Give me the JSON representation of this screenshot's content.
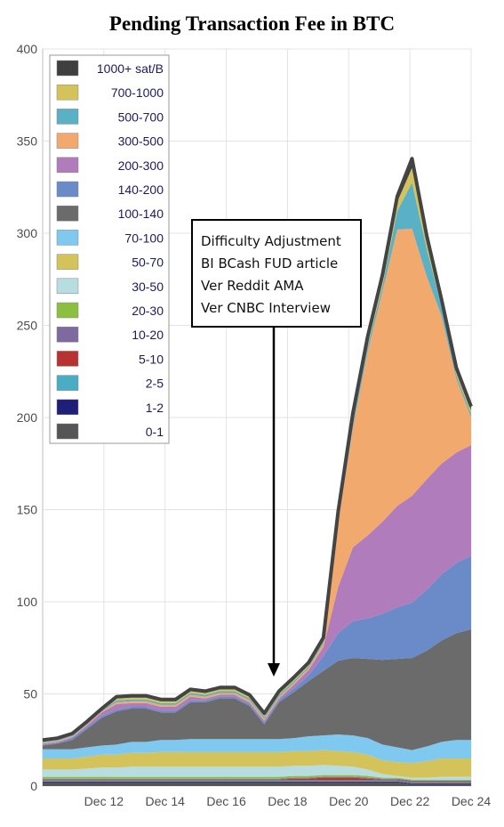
{
  "chart_data": {
    "type": "area",
    "title": "Pending Transaction Fee in BTC",
    "xlabel": "",
    "ylabel": "",
    "ylim": [
      0,
      400
    ],
    "yticks": [
      0,
      50,
      100,
      150,
      200,
      250,
      300,
      350,
      400
    ],
    "xlim": [
      "Dec 10",
      "Dec 24"
    ],
    "xtick_labels": [
      "Dec 12",
      "Dec 14",
      "Dec 16",
      "Dec 18",
      "Dec 20",
      "Dec 22",
      "Dec 24"
    ],
    "grid": true,
    "legend_placement": "top-left",
    "stacked": true,
    "x": [
      "Dec 10 00:00",
      "Dec 10 12:00",
      "Dec 11 00:00",
      "Dec 11 12:00",
      "Dec 12 00:00",
      "Dec 12 12:00",
      "Dec 13 00:00",
      "Dec 13 12:00",
      "Dec 14 00:00",
      "Dec 14 12:00",
      "Dec 15 00:00",
      "Dec 15 12:00",
      "Dec 16 00:00",
      "Dec 16 12:00",
      "Dec 17 00:00",
      "Dec 17 12:00",
      "Dec 18 00:00",
      "Dec 18 12:00",
      "Dec 19 00:00",
      "Dec 19 12:00",
      "Dec 20 00:00",
      "Dec 20 12:00",
      "Dec 21 00:00",
      "Dec 21 12:00",
      "Dec 22 00:00",
      "Dec 22 12:00",
      "Dec 23 00:00",
      "Dec 23 12:00",
      "Dec 24 00:00",
      "Dec 24 12:00"
    ],
    "series": [
      {
        "name": "0-1",
        "color": "#555555",
        "values": [
          2,
          2,
          2,
          2,
          2,
          2,
          2,
          2,
          2,
          2,
          2,
          2,
          2,
          2,
          2,
          2,
          2,
          2,
          2,
          2,
          2,
          2,
          2,
          2,
          2,
          1,
          1,
          1,
          1,
          1
        ]
      },
      {
        "name": "1-2",
        "color": "#1f1f7a",
        "values": [
          0.5,
          0.5,
          0.5,
          0.5,
          0.5,
          0.5,
          0.5,
          0.5,
          0.5,
          0.5,
          0.5,
          0.5,
          0.5,
          0.5,
          0.5,
          0.5,
          0.5,
          0.5,
          0.5,
          0.5,
          0.5,
          0.5,
          0.5,
          0.5,
          0.5,
          0.5,
          0.5,
          0.5,
          0.5,
          0.5
        ]
      },
      {
        "name": "2-5",
        "color": "#4bacc6",
        "values": [
          0.5,
          0.5,
          0.5,
          0.5,
          0.5,
          0.5,
          0.5,
          0.5,
          0.5,
          0.5,
          0.5,
          0.5,
          0.5,
          0.5,
          0.5,
          0.5,
          0.5,
          0.5,
          0.5,
          0.5,
          0.5,
          0.5,
          0.5,
          0.5,
          0.5,
          0.5,
          0.5,
          0.5,
          0.5,
          0.5
        ]
      },
      {
        "name": "5-10",
        "color": "#b83232",
        "values": [
          0.5,
          0.5,
          0.5,
          0.5,
          0.5,
          0.5,
          0.5,
          0.5,
          0.5,
          0.5,
          0.5,
          0.5,
          0.5,
          0.5,
          0.5,
          0.5,
          0.5,
          1,
          1,
          1.5,
          1.5,
          1.5,
          1,
          0.5,
          0.5,
          0.5,
          0.5,
          0.5,
          0.5,
          0.5
        ]
      },
      {
        "name": "10-20",
        "color": "#7f6aa0",
        "values": [
          0.5,
          0.5,
          0.5,
          0.5,
          0.5,
          0.5,
          0.5,
          0.5,
          0.5,
          0.5,
          0.5,
          0.5,
          0.5,
          0.5,
          0.5,
          0.5,
          0.5,
          0.5,
          0.5,
          0.5,
          0.5,
          0.5,
          0.5,
          0.5,
          0.5,
          0.5,
          0.5,
          0.5,
          0.5,
          0.5
        ]
      },
      {
        "name": "20-30",
        "color": "#8cbf3f",
        "values": [
          1,
          1,
          1,
          1,
          1,
          1,
          1,
          1,
          1,
          1,
          1,
          1,
          1,
          1,
          1,
          1,
          1,
          1,
          1,
          1,
          1,
          1,
          1,
          0.5,
          0.5,
          0.5,
          0.5,
          0.5,
          0.5,
          0.5
        ]
      },
      {
        "name": "30-50",
        "color": "#b7dde0",
        "values": [
          4,
          4,
          4,
          4.5,
          5,
          5,
          5.5,
          5.5,
          5.5,
          5.5,
          5.5,
          5.5,
          5.5,
          5.5,
          5.5,
          5.5,
          5.5,
          5.5,
          5.5,
          5.5,
          5,
          4.5,
          3.5,
          2,
          1,
          1,
          1,
          1.5,
          1.5,
          1.5
        ]
      },
      {
        "name": "50-70",
        "color": "#d4c25a",
        "values": [
          6,
          6,
          6,
          6.5,
          7,
          7,
          7.5,
          7.5,
          8,
          8,
          8,
          8,
          8,
          8,
          8,
          8,
          8,
          8,
          8,
          8,
          8,
          8,
          8,
          7.5,
          7.5,
          8,
          9,
          10,
          10,
          10
        ]
      },
      {
        "name": "70-100",
        "color": "#7fc8ef",
        "values": [
          5,
          5,
          5,
          5,
          5,
          5.5,
          6,
          6,
          6.5,
          6.5,
          7,
          7,
          7,
          7,
          7,
          7,
          7,
          7,
          8,
          8,
          9,
          9,
          9,
          8.5,
          8,
          7,
          8,
          9,
          10,
          10
        ]
      },
      {
        "name": "100-140",
        "color": "#6b6b6b",
        "values": [
          2,
          3,
          5,
          10,
          15,
          18,
          18,
          18,
          15,
          15,
          20,
          20,
          22,
          22,
          18,
          8,
          20,
          25,
          30,
          35,
          40,
          42,
          43,
          46,
          48,
          50,
          52,
          55,
          58,
          60
        ]
      },
      {
        "name": "140-200",
        "color": "#6a8bc8",
        "values": [
          0.5,
          0.5,
          1,
          1,
          1,
          1,
          1,
          1,
          1,
          1,
          1,
          1,
          1,
          1,
          1,
          1,
          1,
          2,
          3,
          8,
          15,
          20,
          22,
          25,
          28,
          30,
          33,
          36,
          38,
          40
        ]
      },
      {
        "name": "200-300",
        "color": "#b07cbb",
        "values": [
          0.5,
          0.5,
          0.5,
          1,
          2,
          3,
          2,
          2,
          2,
          2,
          2,
          1,
          1,
          1,
          1,
          1,
          1,
          2,
          3,
          5,
          25,
          40,
          45,
          50,
          55,
          58,
          60,
          60,
          60,
          60
        ]
      },
      {
        "name": "300-500",
        "color": "#f2a96d",
        "values": [
          0.5,
          0.5,
          0.5,
          0.5,
          0.5,
          1,
          1,
          1,
          1,
          1,
          1,
          1,
          1,
          1,
          1,
          1,
          1,
          1,
          1,
          2,
          35,
          65,
          100,
          125,
          150,
          145,
          110,
          80,
          40,
          15
        ]
      },
      {
        "name": "500-700",
        "color": "#5ab0c4",
        "values": [
          0.5,
          0.5,
          0.5,
          0.5,
          0.5,
          1,
          1,
          1,
          1,
          1,
          1,
          1,
          1,
          1,
          1,
          1,
          1,
          1,
          1,
          1,
          2,
          3,
          3,
          3,
          10,
          25,
          15,
          5,
          2,
          2
        ]
      },
      {
        "name": "700-1000",
        "color": "#d4c25a",
        "values": [
          0.5,
          0.5,
          0.5,
          0.5,
          0.5,
          1,
          1,
          1,
          1,
          1,
          1,
          1,
          1,
          1,
          1,
          1,
          1,
          1,
          1,
          1,
          2,
          3,
          3,
          3,
          5,
          8,
          4,
          2,
          2,
          2
        ]
      },
      {
        "name": "1000+ sat/B",
        "color": "#3f3f3f",
        "values": [
          0.5,
          0.5,
          0.5,
          0.5,
          0.5,
          1,
          1,
          1,
          1,
          1,
          1,
          1,
          1,
          1,
          1,
          1,
          1,
          1,
          1,
          1,
          2,
          2,
          2,
          3,
          3,
          5,
          3,
          2,
          2,
          2
        ]
      }
    ],
    "annotation": {
      "lines": [
        "Difficulty Adjustment",
        "BI BCash FUD article",
        "Ver Reddit AMA",
        "Ver CNBC Interview"
      ],
      "arrow_to_x": "Dec 18 12:00"
    }
  }
}
